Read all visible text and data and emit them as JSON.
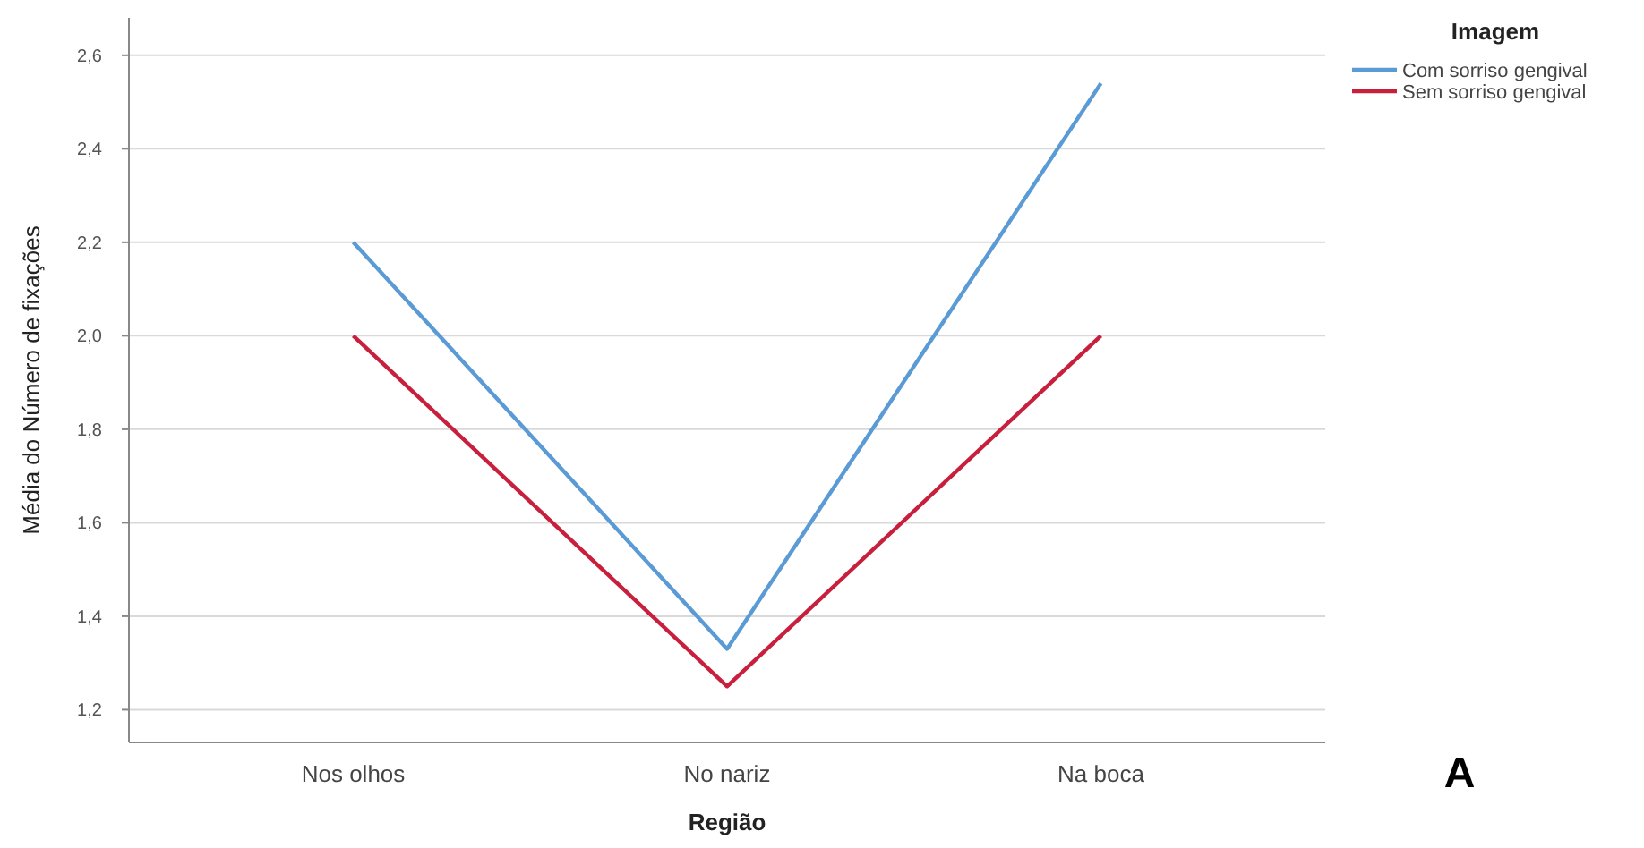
{
  "chart_data": {
    "type": "line",
    "xlabel": "Região",
    "ylabel": "Média do Número de fixações",
    "legend_title": "Imagem",
    "categories": [
      "Nos olhos",
      "No nariz",
      "Na boca"
    ],
    "series": [
      {
        "name": "Com sorriso gengival",
        "color": "#5b9bd5",
        "values": [
          2.2,
          1.33,
          2.54
        ]
      },
      {
        "name": "Sem sorriso gengival",
        "color": "#c8203c",
        "values": [
          2.0,
          1.25,
          2.0
        ]
      }
    ],
    "ylim": [
      1.13,
      2.68
    ],
    "yticks": [
      {
        "value": 1.2,
        "label": "1,2"
      },
      {
        "value": 1.4,
        "label": "1,4"
      },
      {
        "value": 1.6,
        "label": "1,6"
      },
      {
        "value": 1.8,
        "label": "1,8"
      },
      {
        "value": 2.0,
        "label": "2,0"
      },
      {
        "value": 2.2,
        "label": "2,2"
      },
      {
        "value": 2.4,
        "label": "2,4"
      },
      {
        "value": 2.6,
        "label": "2,6"
      }
    ],
    "grid": "y",
    "legend": "top right",
    "annotations": [
      "A"
    ]
  }
}
